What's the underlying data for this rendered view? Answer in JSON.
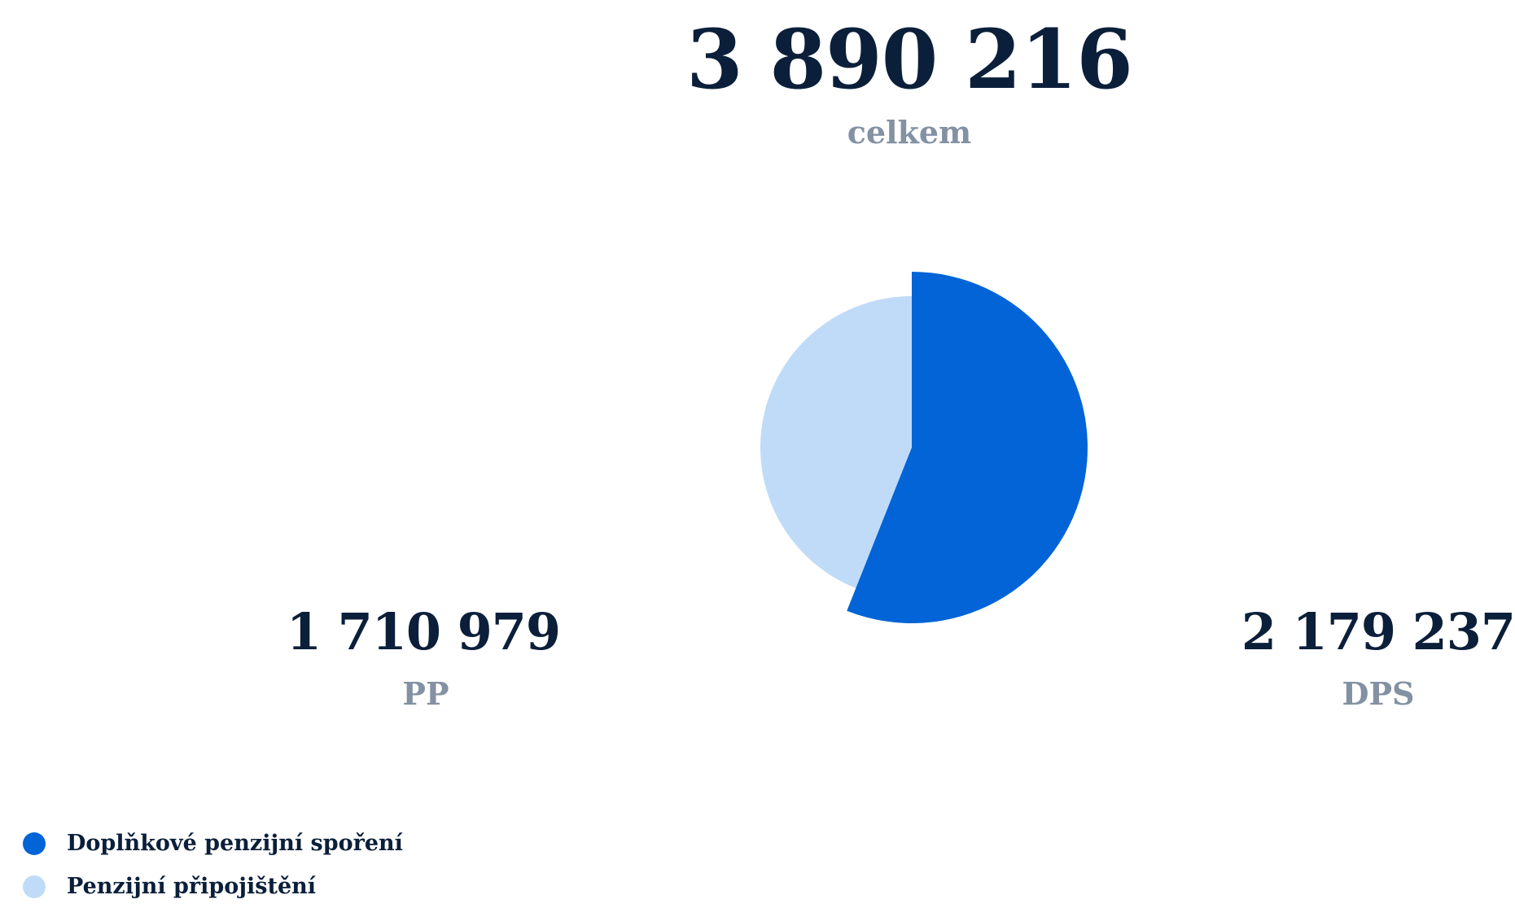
{
  "total": {
    "value": "3 890 216",
    "label": "celkem"
  },
  "pp": {
    "value": "1 710 979",
    "label": "PP"
  },
  "dps": {
    "value": "2 179 237",
    "label": "DPS"
  },
  "colors": {
    "dps": "#0264d6",
    "pp": "#c0dbf8",
    "text": "#0b1f3a",
    "muted": "#8391a3"
  },
  "legend": [
    {
      "label": "Doplňkové penzijní spoření",
      "color": "#0264d6"
    },
    {
      "label": "Penzijní připojištění",
      "color": "#c0dbf8"
    }
  ],
  "chart_data": {
    "type": "pie",
    "categories": [
      "Doplňkové penzijní spoření",
      "Penzijní připojištění"
    ],
    "values": [
      2179237,
      1710979
    ],
    "total": 3890216,
    "legend": "bottom-left"
  }
}
